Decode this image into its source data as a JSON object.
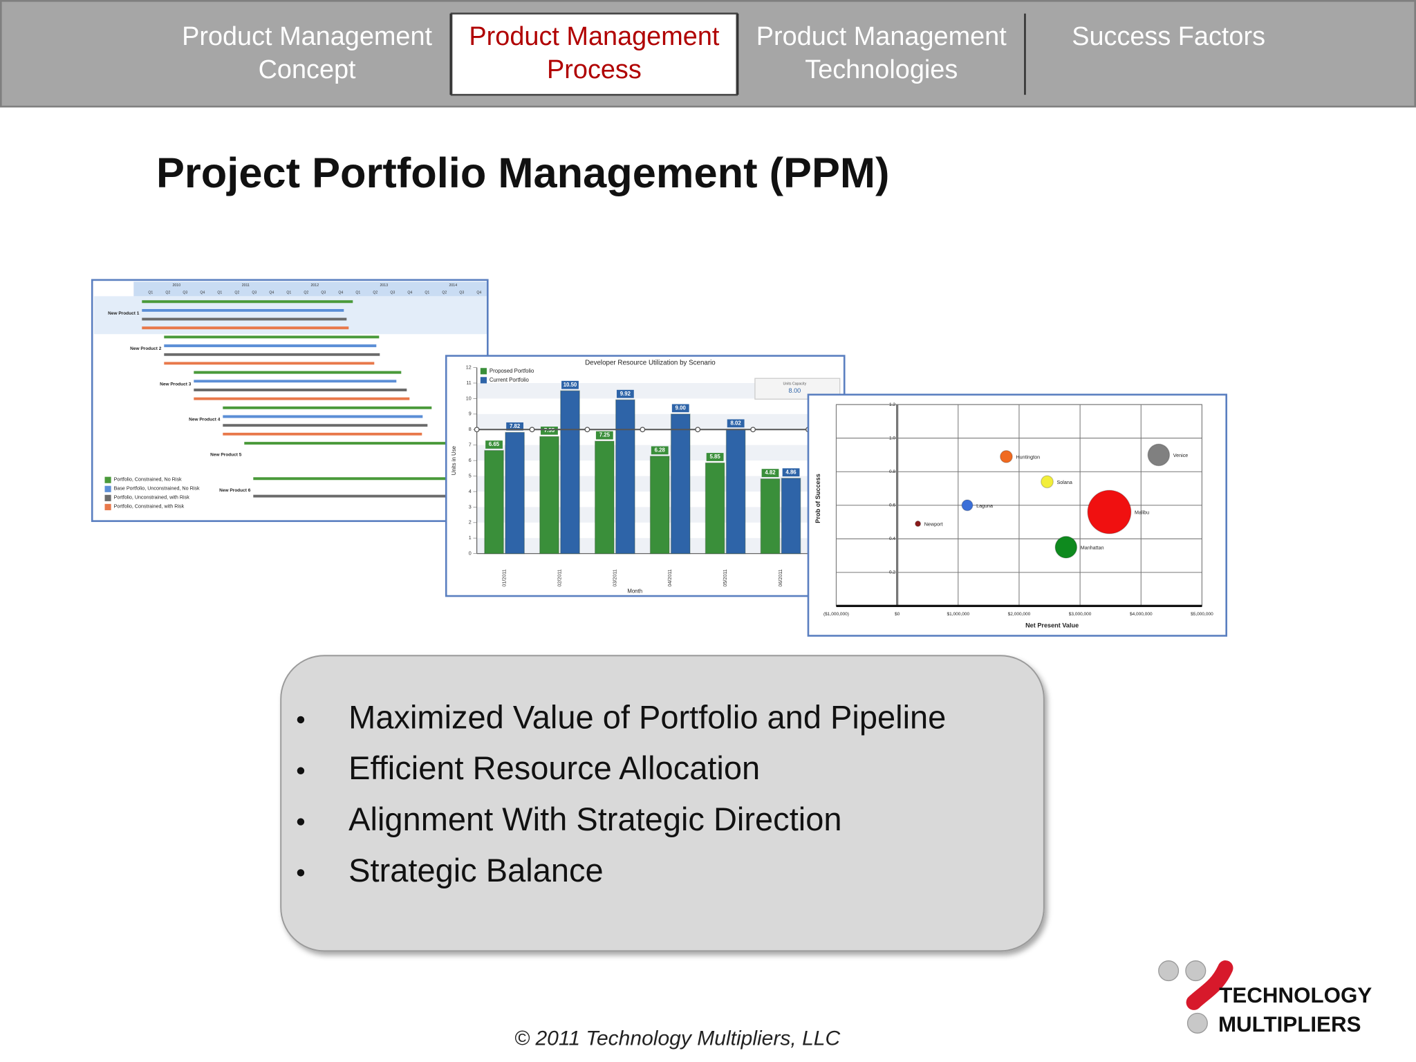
{
  "nav": {
    "tabs": [
      {
        "lines": [
          "Product Management",
          "Concept"
        ],
        "active": false
      },
      {
        "lines": [
          "Product Management",
          "Process"
        ],
        "active": true
      },
      {
        "lines": [
          "Product Management",
          "Technologies"
        ],
        "active": false
      },
      {
        "lines": [
          "Success Factors"
        ],
        "active": false
      }
    ]
  },
  "title": "Project Portfolio Management (PPM)",
  "bullets": [
    "Maximized Value of Portfolio and Pipeline",
    "Efficient Resource Allocation",
    "Alignment With Strategic Direction",
    "Strategic Balance"
  ],
  "footer": "© 2011 Technology Multipliers, LLC",
  "logo": [
    "TECHNOLOGY",
    "MULTIPLIERS"
  ],
  "chart_data": [
    {
      "type": "gantt",
      "rows": [
        "New Product 1",
        "New Product 2",
        "New Product 3",
        "New Product 4",
        "New Product 5",
        "New Product 6"
      ],
      "xlim": [
        2009.88,
        2015
      ],
      "xticks": [
        {
          "value": 2010.5,
          "label": "2010"
        },
        {
          "value": 2011.5,
          "label": "2011"
        },
        {
          "value": 2012.5,
          "label": "2012"
        },
        {
          "value": 2013.5,
          "label": "2013"
        },
        {
          "value": 2014.5,
          "label": "2014"
        }
      ],
      "quarter_labels": [
        "Q1",
        "Q2",
        "Q3",
        "Q4"
      ],
      "series": [
        {
          "name": "Portfolio, Constrained, No Risk",
          "color": "#4a9a3a",
          "start": [
            2010,
            2010.32,
            2010.75,
            2011.17,
            2011.48,
            2011.61
          ],
          "end": [
            2013.05,
            2013.43,
            2013.75,
            2014.19,
            2014.6,
            2014.6
          ]
        },
        {
          "name": "Base Portfolio, Unconstrained, No Risk",
          "color": "#5b8ed6",
          "start": [
            2010,
            2010.32,
            2010.75,
            2011.17,
            null,
            null
          ],
          "end": [
            2012.92,
            2013.39,
            2013.68,
            2014.06,
            null,
            null
          ]
        },
        {
          "name": "Portfolio, Unconstrained, with Risk",
          "color": "#6b6b6b",
          "start": [
            2010,
            2010.32,
            2010.75,
            2011.17,
            null,
            2011.61
          ],
          "end": [
            2012.96,
            2013.44,
            2013.83,
            2014.13,
            null,
            2014.6
          ]
        },
        {
          "name": "Portfolio, Constrained, with Risk",
          "color": "#e8784a",
          "start": [
            2010,
            2010.32,
            2010.75,
            2011.17,
            null,
            null
          ],
          "end": [
            2012.99,
            2013.36,
            2013.87,
            2014.05,
            null,
            null
          ]
        }
      ]
    },
    {
      "type": "bar",
      "title": "Developer Resource Utilization by Scenario",
      "x_label": "Month",
      "y_label": "Units in Use",
      "categories": [
        "01/2011",
        "02/2011",
        "03/2011",
        "04/2011",
        "05/2011",
        "06/2011"
      ],
      "series": [
        {
          "name": "Proposed Portfolio",
          "color": "#3a8f3a",
          "values": [
            6.65,
            7.55,
            7.25,
            6.28,
            5.85,
            4.82
          ]
        },
        {
          "name": "Current Portfolio",
          "color": "#2e64a8",
          "values": [
            7.82,
            10.5,
            9.92,
            9,
            8.02,
            4.86
          ],
          "value_labels": [
            "7.82",
            "10.50",
            "9.92",
            "9.00",
            "8.02",
            "4.86"
          ]
        }
      ],
      "reference_line": {
        "name": "Units Capacity",
        "value": 8,
        "label": "8.00"
      },
      "ylim": [
        0,
        12
      ],
      "yticks": [
        0,
        1,
        2,
        3,
        4,
        5,
        6,
        7,
        8,
        9,
        10,
        11,
        12
      ],
      "grid": true
    },
    {
      "type": "bubble",
      "x_label": "Net Present Value",
      "y_label": "Prob of Success",
      "labels": [
        "Newport",
        "Laguna",
        "Huntington",
        "Solana",
        "Malibu",
        "Manhattan",
        "Venice"
      ],
      "colors": [
        "#8b1a1a",
        "#3b6fd8",
        "#f06a20",
        "#f2ee3a",
        "#f01010",
        "#0e8a1e",
        "#808080"
      ],
      "x": [
        340000,
        1150000,
        1790000,
        2460000,
        3480000,
        2770000,
        4290000
      ],
      "values": [
        0.49,
        0.6,
        0.89,
        0.74,
        0.56,
        0.35,
        0.9
      ],
      "sizes": [
        1,
        4,
        5,
        5,
        64,
        16,
        16
      ],
      "xlim": [
        -1000000,
        5000000
      ],
      "xticks": [
        {
          "value": -1000000,
          "label": "($1,000,000)"
        },
        {
          "value": 0,
          "label": "$0"
        },
        {
          "value": 1000000,
          "label": "$1,000,000"
        },
        {
          "value": 2000000,
          "label": "$2,000,000"
        },
        {
          "value": 3000000,
          "label": "$3,000,000"
        },
        {
          "value": 4000000,
          "label": "$4,000,000"
        },
        {
          "value": 5000000,
          "label": "$5,000,000"
        }
      ],
      "ylim": [
        0,
        1.2
      ],
      "yticks": [
        0.2,
        0.4,
        0.6,
        0.8,
        {
          "value": 1,
          "label": "1.0"
        },
        1.2
      ],
      "grid": true
    }
  ]
}
